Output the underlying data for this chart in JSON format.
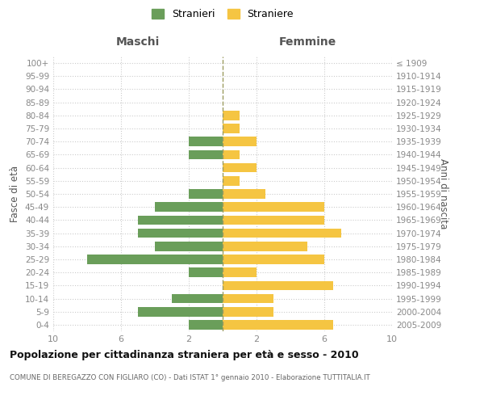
{
  "age_groups": [
    "0-4",
    "5-9",
    "10-14",
    "15-19",
    "20-24",
    "25-29",
    "30-34",
    "35-39",
    "40-44",
    "45-49",
    "50-54",
    "55-59",
    "60-64",
    "65-69",
    "70-74",
    "75-79",
    "80-84",
    "85-89",
    "90-94",
    "95-99",
    "100+"
  ],
  "birth_years": [
    "2005-2009",
    "2000-2004",
    "1995-1999",
    "1990-1994",
    "1985-1989",
    "1980-1984",
    "1975-1979",
    "1970-1974",
    "1965-1969",
    "1960-1964",
    "1955-1959",
    "1950-1954",
    "1945-1949",
    "1940-1944",
    "1935-1939",
    "1930-1934",
    "1925-1929",
    "1920-1924",
    "1915-1919",
    "1910-1914",
    "≤ 1909"
  ],
  "males": [
    2,
    5,
    3,
    0,
    2,
    8,
    4,
    5,
    5,
    4,
    2,
    0,
    0,
    2,
    2,
    0,
    0,
    0,
    0,
    0,
    0
  ],
  "females": [
    6.5,
    3,
    3,
    6.5,
    2,
    6,
    5,
    7,
    6,
    6,
    2.5,
    1,
    2,
    1,
    2,
    1,
    1,
    0,
    0,
    0,
    0
  ],
  "male_color": "#6a9e5a",
  "female_color": "#f5c542",
  "background_color": "#ffffff",
  "grid_color": "#cccccc",
  "dashed_line_color": "#9c9c60",
  "title": "Popolazione per cittadinanza straniera per età e sesso - 2010",
  "subtitle": "COMUNE DI BEREGAZZO CON FIGLIARO (CO) - Dati ISTAT 1° gennaio 2010 - Elaborazione TUTTITALIA.IT",
  "xlabel_left": "Maschi",
  "xlabel_right": "Femmine",
  "ylabel_left": "Fasce di età",
  "ylabel_right": "Anni di nascita",
  "legend_stranieri": "Stranieri",
  "legend_straniere": "Straniere",
  "xlim": 10
}
